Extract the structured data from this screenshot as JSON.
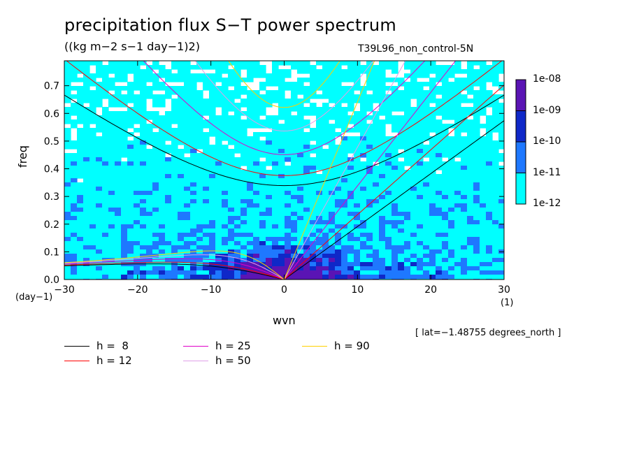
{
  "header": {
    "title": "precipitation flux S−T power spectrum",
    "units": "((kg m−2 s−1 day−1)2)",
    "run_name": "T39L96_non_control-5N"
  },
  "axes": {
    "y_label": "freq",
    "x_label": "wvn",
    "x_unit_left": "(day−1)",
    "x_unit_right": "(1)",
    "lat_note": "[ lat=−1.48755 degrees_north ]"
  },
  "colors": {
    "band_1e12_1e11": "#00ffff",
    "band_1e11_1e10": "#1e78ff",
    "band_1e10_1e09": "#0f28c8",
    "band_1e09_1e08": "#5a14b4",
    "h8": "#000000",
    "h12": "#ff0000",
    "h25": "#e000c8",
    "h50": "#e0a0e8",
    "h90": "#ffd000"
  },
  "legend": [
    {
      "label": "h =  8",
      "color_key": "h8"
    },
    {
      "label": "h = 12",
      "color_key": "h12"
    },
    {
      "label": "h = 25",
      "color_key": "h25"
    },
    {
      "label": "h = 50",
      "color_key": "h50"
    },
    {
      "label": "h = 90",
      "color_key": "h90"
    }
  ],
  "colorbar": {
    "labels": [
      "1e-08",
      "1e-09",
      "1e-10",
      "1e-11",
      "1e-12"
    ]
  },
  "chart_data": {
    "type": "heatmap",
    "title": "precipitation flux S−T power spectrum",
    "subtitle": "((kg m−2 s−1 day−1)2)",
    "xlabel": "wvn",
    "ylabel": "freq",
    "xlim": [
      -30,
      30
    ],
    "ylim": [
      0,
      0.79
    ],
    "x_ticks": [
      -30,
      -20,
      -10,
      0,
      10,
      20,
      30
    ],
    "x_tick_labels": [
      "−30",
      "−20",
      "−10",
      "0",
      "10",
      "20",
      "30"
    ],
    "y_ticks": [
      0.0,
      0.1,
      0.2,
      0.3,
      0.4,
      0.5,
      0.6,
      0.7
    ],
    "y_tick_labels": [
      "0.0",
      "0.1",
      "0.2",
      "0.3",
      "0.4",
      "0.5",
      "0.6",
      "0.7"
    ],
    "contour_levels": [
      "1e-12",
      "1e-11",
      "1e-10",
      "1e-09",
      "1e-08"
    ],
    "dispersion_curves": [
      {
        "name": "h =  8",
        "equivalent_depth": 8
      },
      {
        "name": "h = 12",
        "equivalent_depth": 12
      },
      {
        "name": "h = 25",
        "equivalent_depth": 25
      },
      {
        "name": "h = 50",
        "equivalent_depth": 50
      },
      {
        "name": "h = 90",
        "equivalent_depth": 90
      }
    ],
    "grid": false
  }
}
